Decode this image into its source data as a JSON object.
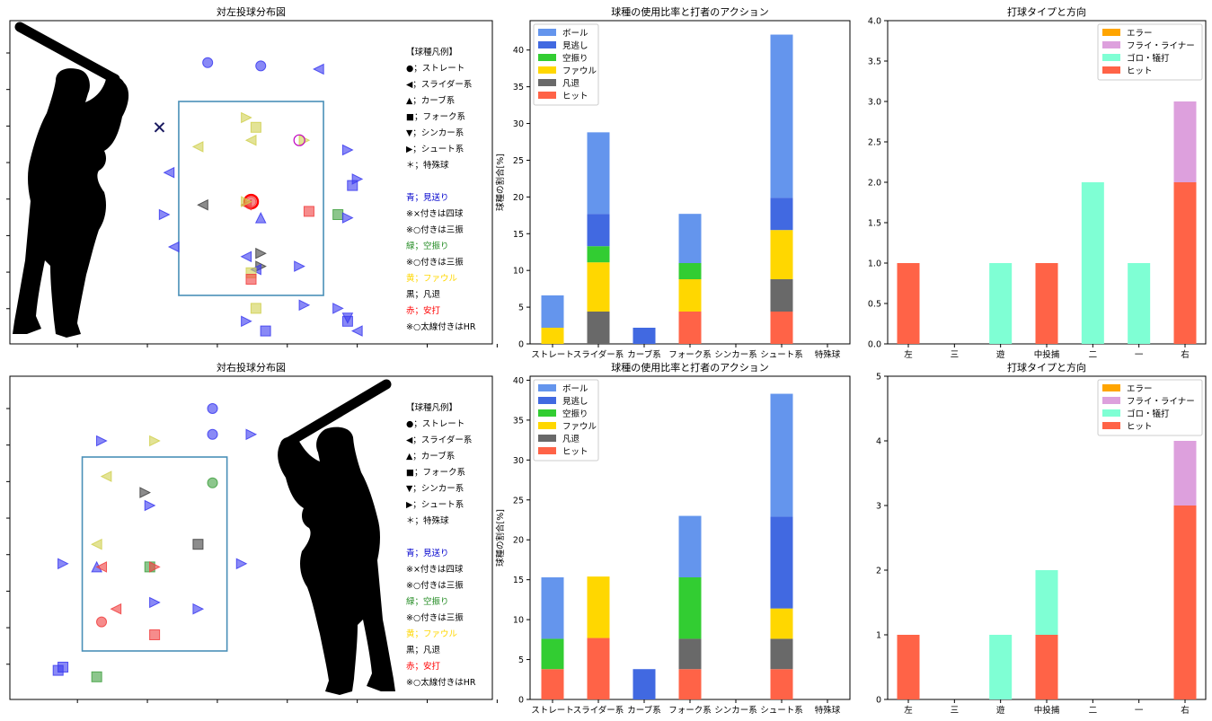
{
  "colors": {
    "ball": "#6495ED",
    "looking": "#4169E1",
    "swinging": "#32CD32",
    "foul": "#FFD700",
    "out": "#696969",
    "hit": "#FF6347",
    "error": "#FFA500",
    "fly": "#DDA0DD",
    "grounder": "#7FFFD4",
    "zone": "#4A90B8",
    "legend_blue": "#0000CD",
    "legend_green": "#228B22",
    "legend_yellow": "#FFD700",
    "legend_red": "#FF0000"
  },
  "legend_text": {
    "header": "【球種凡例】",
    "items": [
      "●；ストレート",
      "◀；スライダー系",
      "▲；カーブ系",
      "■；フォーク系",
      "▼；シンカー系",
      "▶；シュート系",
      "＊；特殊球"
    ],
    "action": [
      "青；見送り",
      " ※×付きは四球",
      " ※○付きは三振",
      "緑；空振り",
      " ※○付きは三振",
      "黄；ファウル",
      "黒；凡退",
      "赤；安打",
      " ※○太線付きはHR"
    ]
  },
  "pitch_types": [
    "ストレート",
    "スライダー系",
    "カーブ系",
    "フォーク系",
    "シンカー系",
    "シュート系",
    "特殊球"
  ],
  "stack_series": [
    "ヒット",
    "凡退",
    "ファウル",
    "空振り",
    "見逃し",
    "ボール"
  ],
  "direction_categories": [
    "左",
    "三",
    "遊",
    "中投捕",
    "二",
    "一",
    "右"
  ],
  "batted_series": [
    "エラー",
    "フライ・ライナー",
    "ゴロ・犠打",
    "ヒット"
  ],
  "chart_data": [
    {
      "type": "scatter",
      "title": "対左投球分布図",
      "xlim": [
        0,
        100
      ],
      "ylim": [
        0,
        100
      ],
      "strike_zone": {
        "x": [
          35,
          65
        ],
        "y": [
          15,
          75
        ]
      },
      "pitches": [
        {
          "x": 41,
          "y": 87,
          "shape": "circle",
          "color": "blue"
        },
        {
          "x": 52,
          "y": 86,
          "shape": "circle",
          "color": "blue"
        },
        {
          "x": 64,
          "y": 85,
          "shape": "left",
          "color": "blue"
        },
        {
          "x": 31,
          "y": 67,
          "shape": "x",
          "color": "black"
        },
        {
          "x": 49,
          "y": 70,
          "shape": "right",
          "color": "yellow"
        },
        {
          "x": 51,
          "y": 67,
          "shape": "square",
          "color": "yellow"
        },
        {
          "x": 50,
          "y": 63,
          "shape": "left",
          "color": "yellow"
        },
        {
          "x": 39,
          "y": 61,
          "shape": "left",
          "color": "yellow"
        },
        {
          "x": 61,
          "y": 63,
          "shape": "right",
          "color": "yellow"
        },
        {
          "x": 60,
          "y": 63,
          "shape": "ring",
          "color": "magenta"
        },
        {
          "x": 70,
          "y": 60,
          "shape": "right",
          "color": "blue"
        },
        {
          "x": 33,
          "y": 53,
          "shape": "left",
          "color": "blue"
        },
        {
          "x": 72,
          "y": 51,
          "shape": "right",
          "color": "blue"
        },
        {
          "x": 71,
          "y": 49,
          "shape": "square",
          "color": "blue"
        },
        {
          "x": 50,
          "y": 44,
          "shape": "circle",
          "color": "red",
          "hr": true
        },
        {
          "x": 49,
          "y": 43,
          "shape": "left",
          "color": "red"
        },
        {
          "x": 49,
          "y": 44,
          "shape": "right",
          "color": "yellow"
        },
        {
          "x": 40,
          "y": 43,
          "shape": "left",
          "color": "black"
        },
        {
          "x": 52,
          "y": 39,
          "shape": "up",
          "color": "blue"
        },
        {
          "x": 62,
          "y": 41,
          "shape": "square",
          "color": "red"
        },
        {
          "x": 68,
          "y": 40,
          "shape": "square",
          "color": "green"
        },
        {
          "x": 70,
          "y": 39,
          "shape": "right",
          "color": "blue"
        },
        {
          "x": 32,
          "y": 40,
          "shape": "right",
          "color": "blue"
        },
        {
          "x": 34,
          "y": 30,
          "shape": "left",
          "color": "blue"
        },
        {
          "x": 52,
          "y": 28,
          "shape": "right",
          "color": "black"
        },
        {
          "x": 49,
          "y": 27,
          "shape": "left",
          "color": "blue"
        },
        {
          "x": 52,
          "y": 24,
          "shape": "right",
          "color": "black"
        },
        {
          "x": 51,
          "y": 23,
          "shape": "left",
          "color": "blue"
        },
        {
          "x": 50,
          "y": 22,
          "shape": "square",
          "color": "yellow"
        },
        {
          "x": 50,
          "y": 20,
          "shape": "square",
          "color": "red"
        },
        {
          "x": 60,
          "y": 24,
          "shape": "right",
          "color": "blue"
        },
        {
          "x": 51,
          "y": 11,
          "shape": "square",
          "color": "yellow"
        },
        {
          "x": 61,
          "y": 12,
          "shape": "right",
          "color": "blue"
        },
        {
          "x": 68,
          "y": 11,
          "shape": "right",
          "color": "blue"
        },
        {
          "x": 49,
          "y": 7,
          "shape": "right",
          "color": "blue"
        },
        {
          "x": 53,
          "y": 4,
          "shape": "square",
          "color": "blue"
        },
        {
          "x": 70,
          "y": 7,
          "shape": "square",
          "color": "blue"
        },
        {
          "x": 70,
          "y": 8,
          "shape": "down",
          "color": "blue"
        },
        {
          "x": 72,
          "y": 4,
          "shape": "left",
          "color": "blue"
        }
      ]
    },
    {
      "type": "bar",
      "title": "球種の使用比率と打者のアクション",
      "ylabel": "球種の割合[%]",
      "ylim": [
        0,
        44
      ],
      "yticks": [
        0,
        5,
        10,
        15,
        20,
        25,
        30,
        35,
        40
      ],
      "categories": [
        "ストレート",
        "スライダー系",
        "カーブ系",
        "フォーク系",
        "シンカー系",
        "シュート系",
        "特殊球"
      ],
      "series": [
        {
          "name": "ヒット",
          "values": [
            0,
            0,
            0,
            4.4,
            0,
            4.4,
            0
          ]
        },
        {
          "name": "凡退",
          "values": [
            0,
            4.4,
            0,
            0,
            0,
            4.4,
            0
          ]
        },
        {
          "name": "ファウル",
          "values": [
            2.2,
            6.7,
            0,
            4.4,
            0,
            6.7,
            0
          ]
        },
        {
          "name": "空振り",
          "values": [
            0,
            2.2,
            0,
            2.2,
            0,
            0,
            0
          ]
        },
        {
          "name": "見逃し",
          "values": [
            0,
            4.4,
            2.2,
            0,
            0,
            4.4,
            0
          ]
        },
        {
          "name": "ボール",
          "values": [
            4.4,
            11.1,
            0,
            6.7,
            0,
            22.2,
            0
          ]
        }
      ]
    },
    {
      "type": "bar",
      "title": "打球タイプと方向",
      "ylim": [
        0,
        4
      ],
      "yticks": [
        "0.0",
        "0.5",
        "1.0",
        "1.5",
        "2.0",
        "2.5",
        "3.0",
        "3.5",
        "4.0"
      ],
      "categories": [
        "左",
        "三",
        "遊",
        "中投捕",
        "二",
        "一",
        "右"
      ],
      "series": [
        {
          "name": "ヒット",
          "values": [
            1,
            0,
            0,
            1,
            0,
            0,
            2
          ]
        },
        {
          "name": "ゴロ・犠打",
          "values": [
            0,
            0,
            1,
            0,
            2,
            1,
            0
          ]
        },
        {
          "name": "フライ・ライナー",
          "values": [
            0,
            0,
            0,
            0,
            0,
            0,
            1
          ]
        },
        {
          "name": "エラー",
          "values": [
            0,
            0,
            0,
            0,
            0,
            0,
            0
          ]
        }
      ]
    },
    {
      "type": "scatter",
      "title": "対右投球分布図",
      "xlim": [
        0,
        100
      ],
      "ylim": [
        0,
        100
      ],
      "strike_zone": {
        "x": [
          15,
          45
        ],
        "y": [
          15,
          75
        ]
      },
      "pitches": [
        {
          "x": 42,
          "y": 90,
          "shape": "circle",
          "color": "blue"
        },
        {
          "x": 42,
          "y": 82,
          "shape": "circle",
          "color": "blue"
        },
        {
          "x": 50,
          "y": 82,
          "shape": "right",
          "color": "blue"
        },
        {
          "x": 19,
          "y": 80,
          "shape": "right",
          "color": "blue"
        },
        {
          "x": 30,
          "y": 80,
          "shape": "right",
          "color": "yellow"
        },
        {
          "x": 20,
          "y": 69,
          "shape": "left",
          "color": "yellow"
        },
        {
          "x": 42,
          "y": 67,
          "shape": "circle",
          "color": "green"
        },
        {
          "x": 28,
          "y": 64,
          "shape": "right",
          "color": "black"
        },
        {
          "x": 29,
          "y": 60,
          "shape": "right",
          "color": "blue"
        },
        {
          "x": 18,
          "y": 48,
          "shape": "left",
          "color": "yellow"
        },
        {
          "x": 39,
          "y": 48,
          "shape": "square",
          "color": "black"
        },
        {
          "x": 11,
          "y": 42,
          "shape": "right",
          "color": "blue"
        },
        {
          "x": 18,
          "y": 41,
          "shape": "up",
          "color": "blue"
        },
        {
          "x": 19,
          "y": 41,
          "shape": "left",
          "color": "red"
        },
        {
          "x": 29,
          "y": 41,
          "shape": "square",
          "color": "green"
        },
        {
          "x": 30,
          "y": 41,
          "shape": "right",
          "color": "red"
        },
        {
          "x": 48,
          "y": 42,
          "shape": "right",
          "color": "blue"
        },
        {
          "x": 30,
          "y": 30,
          "shape": "right",
          "color": "blue"
        },
        {
          "x": 22,
          "y": 28,
          "shape": "left",
          "color": "red"
        },
        {
          "x": 39,
          "y": 28,
          "shape": "right",
          "color": "blue"
        },
        {
          "x": 19,
          "y": 24,
          "shape": "circle",
          "color": "red"
        },
        {
          "x": 30,
          "y": 20,
          "shape": "square",
          "color": "red"
        },
        {
          "x": 11,
          "y": 10,
          "shape": "square",
          "color": "blue"
        },
        {
          "x": 10,
          "y": 9,
          "shape": "square",
          "color": "blue"
        },
        {
          "x": 18,
          "y": 7,
          "shape": "square",
          "color": "green"
        }
      ]
    },
    {
      "type": "bar",
      "title": "球種の使用比率と打者のアクション",
      "ylabel": "球種の割合[%]",
      "ylim": [
        0,
        40.5
      ],
      "yticks": [
        0,
        5,
        10,
        15,
        20,
        25,
        30,
        35,
        40
      ],
      "categories": [
        "ストレート",
        "スライダー系",
        "カーブ系",
        "フォーク系",
        "シンカー系",
        "シュート系",
        "特殊球"
      ],
      "series": [
        {
          "name": "ヒット",
          "values": [
            3.8,
            7.7,
            0,
            3.8,
            0,
            3.8,
            0
          ]
        },
        {
          "name": "凡退",
          "values": [
            0,
            0,
            0,
            3.8,
            0,
            3.8,
            0
          ]
        },
        {
          "name": "ファウル",
          "values": [
            0,
            7.7,
            0,
            0,
            0,
            3.8,
            0
          ]
        },
        {
          "name": "空振り",
          "values": [
            3.8,
            0,
            0,
            7.7,
            0,
            0,
            0
          ]
        },
        {
          "name": "見逃し",
          "values": [
            0,
            0,
            3.8,
            0,
            0,
            11.5,
            0
          ]
        },
        {
          "name": "ボール",
          "values": [
            7.7,
            0,
            0,
            7.7,
            0,
            15.4,
            0
          ]
        }
      ]
    },
    {
      "type": "bar",
      "title": "打球タイプと方向",
      "ylim": [
        0,
        5
      ],
      "yticks": [
        "0",
        "1",
        "2",
        "3",
        "4",
        "5"
      ],
      "categories": [
        "左",
        "三",
        "遊",
        "中投捕",
        "二",
        "一",
        "右"
      ],
      "series": [
        {
          "name": "ヒット",
          "values": [
            1,
            0,
            0,
            1,
            0,
            0,
            3
          ]
        },
        {
          "name": "ゴロ・犠打",
          "values": [
            0,
            0,
            1,
            1,
            0,
            0,
            0
          ]
        },
        {
          "name": "フライ・ライナー",
          "values": [
            0,
            0,
            0,
            0,
            0,
            0,
            1
          ]
        },
        {
          "name": "エラー",
          "values": [
            0,
            0,
            0,
            0,
            0,
            0,
            0
          ]
        }
      ]
    }
  ]
}
